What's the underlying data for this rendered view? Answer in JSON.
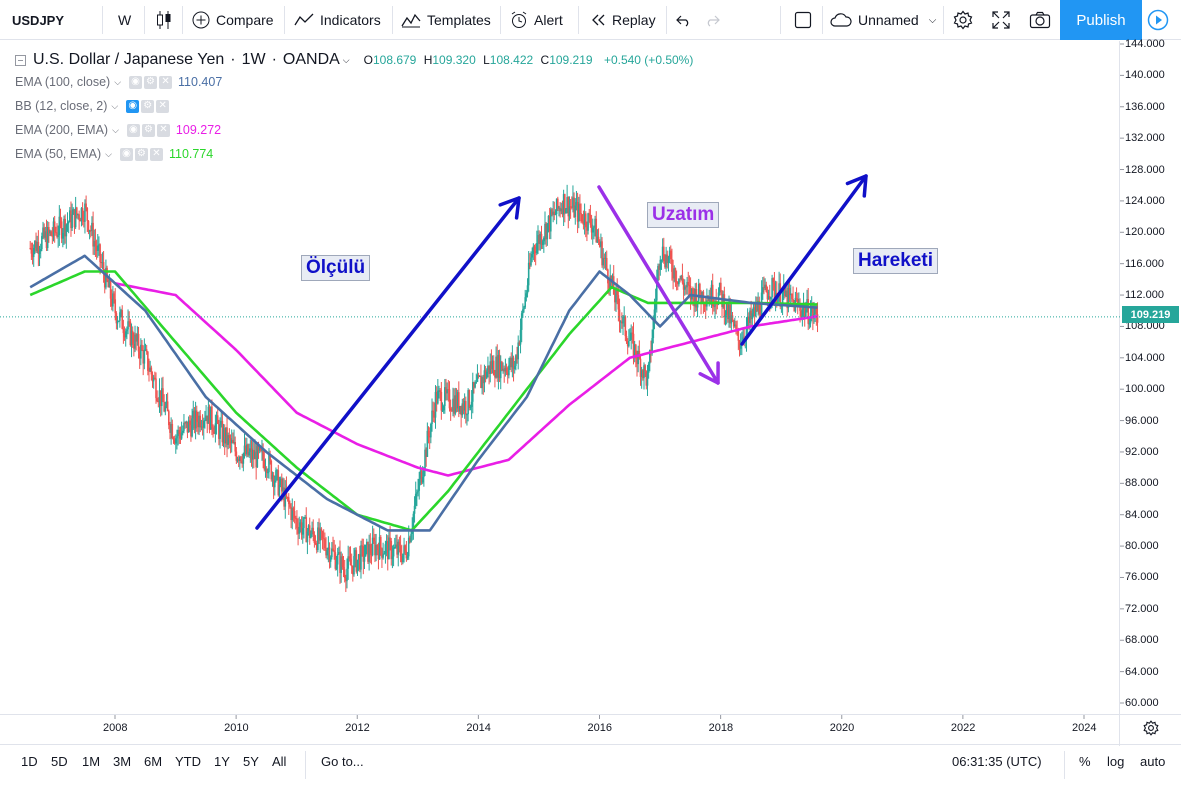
{
  "toolbar": {
    "symbol": "USDJPY",
    "interval": "W",
    "compare": "Compare",
    "indicators": "Indicators",
    "templates": "Templates",
    "alert": "Alert",
    "replay": "Replay",
    "layout_name": "Unnamed",
    "publish": "Publish"
  },
  "legend": {
    "title": "U.S. Dollar / Japanese Yen",
    "interval": "1W",
    "source": "OANDA",
    "open_label": "O",
    "open": "108.679",
    "high_label": "H",
    "high": "109.320",
    "low_label": "L",
    "low": "108.422",
    "close_label": "C",
    "close": "109.219",
    "change": "+0.540 (+0.50%)",
    "indicators": [
      {
        "label": "EMA (100, close)",
        "value": "110.407",
        "color": "#4a6fa5"
      },
      {
        "label": "BB (12, close, 2)",
        "value": "",
        "color": "#9598a1"
      },
      {
        "label": "EMA (200, EMA)",
        "value": "109.272",
        "color": "#e91ee6"
      },
      {
        "label": "EMA (50, EMA)",
        "value": "110.774",
        "color": "#2bd62b"
      }
    ]
  },
  "annotations": {
    "left": "Ölçülü",
    "middle": "Uzatım",
    "right": "Hareketi"
  },
  "price_scale": {
    "ticks": [
      "144.000",
      "140.000",
      "136.000",
      "132.000",
      "128.000",
      "124.000",
      "120.000",
      "116.000",
      "112.000",
      "108.000",
      "104.000",
      "100.000",
      "96.000",
      "92.000",
      "88.000",
      "84.000",
      "80.000",
      "76.000",
      "72.000",
      "68.000",
      "64.000",
      "60.000"
    ],
    "last_price": "109.219",
    "last_price_color": "#26a69a"
  },
  "time_axis": {
    "ticks": [
      "2008",
      "2010",
      "2012",
      "2014",
      "2016",
      "2018",
      "2020",
      "2022",
      "2024"
    ]
  },
  "bottom": {
    "ranges": [
      "1D",
      "5D",
      "1M",
      "3M",
      "6M",
      "YTD",
      "1Y",
      "5Y",
      "All"
    ],
    "goto": "Go to...",
    "clock": "06:31:35 (UTC)",
    "percent": "%",
    "log": "log",
    "auto": "auto"
  },
  "colors": {
    "up": "#26a69a",
    "down": "#ef5350",
    "ema100": "#4a6fa5",
    "ema50": "#2bd62b",
    "ema200": "#e91ee6",
    "arrow_blue": "#1010c8",
    "arrow_purple": "#9b30e8",
    "accent": "#2196f3"
  },
  "chart_data": {
    "type": "line",
    "title": "U.S. Dollar / Japanese Yen · 1W · OANDA",
    "x_unit": "year",
    "y_unit": "JPY",
    "ylim": [
      58,
      146
    ],
    "scale": "linear",
    "series": [
      {
        "name": "USDJPY",
        "x": [
          2006.6,
          2007.0,
          2007.5,
          2008.0,
          2008.5,
          2009.0,
          2009.5,
          2010.0,
          2010.5,
          2011.0,
          2011.5,
          2011.8,
          2012.3,
          2012.8,
          2013.3,
          2013.8,
          2014.2,
          2014.6,
          2014.9,
          2015.4,
          2015.9,
          2016.4,
          2016.8,
          2017.0,
          2017.5,
          2018.0,
          2018.3,
          2018.8,
          2019.2,
          2019.6
        ],
        "y": [
          118,
          120,
          123,
          110,
          104,
          94,
          97,
          92,
          91,
          83,
          80,
          77,
          80,
          79,
          99,
          98,
          103,
          103,
          118,
          124,
          121,
          108,
          101,
          118,
          112,
          112,
          106,
          113,
          111,
          109.2
        ]
      },
      {
        "name": "EMA (100, close)",
        "x": [
          2006.6,
          2007.5,
          2008.5,
          2009.5,
          2010.5,
          2011.5,
          2012.5,
          2013.2,
          2014.0,
          2014.8,
          2015.5,
          2016.0,
          2016.5,
          2017.0,
          2017.5,
          2018.5,
          2019.6
        ],
        "y": [
          113,
          117,
          110,
          99,
          92,
          86,
          82,
          82,
          91,
          99,
          110,
          115,
          112,
          108,
          112,
          111,
          110.4
        ]
      },
      {
        "name": "EMA (50, EMA)",
        "x": [
          2006.6,
          2007.5,
          2008.0,
          2009.0,
          2010.0,
          2011.0,
          2012.0,
          2012.9,
          2013.5,
          2014.5,
          2015.5,
          2016.2,
          2016.8,
          2017.5,
          2018.5,
          2019.6
        ],
        "y": [
          112,
          115,
          115,
          106,
          97,
          90,
          84,
          82,
          87,
          97,
          107,
          113,
          111,
          111,
          111,
          110.8
        ]
      },
      {
        "name": "EMA (200, EMA)",
        "x": [
          2008.0,
          2009.0,
          2010.0,
          2011.0,
          2012.0,
          2013.0,
          2013.5,
          2014.5,
          2015.5,
          2016.5,
          2017.5,
          2018.5,
          2019.6
        ],
        "y": [
          113.5,
          112,
          105,
          97,
          93,
          90,
          89,
          91,
          98,
          104,
          106,
          108,
          109.3
        ]
      }
    ]
  }
}
